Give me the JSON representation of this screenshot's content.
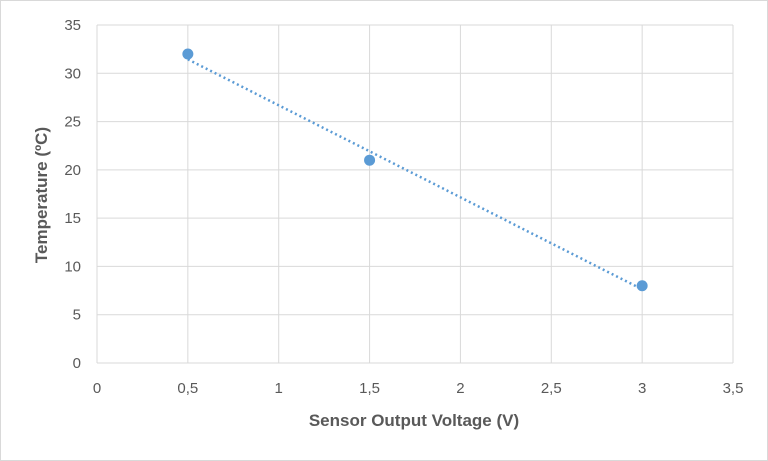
{
  "chart_data": {
    "type": "scatter",
    "title": "",
    "xlabel": "Sensor Output Voltage (V)",
    "ylabel": "Temperature (ºC)",
    "xlim": [
      0,
      3.5
    ],
    "ylim": [
      0,
      35
    ],
    "xticks": [
      0,
      0.5,
      1,
      1.5,
      2,
      2.5,
      3,
      3.5
    ],
    "xtick_labels": [
      "0",
      "0,5",
      "1",
      "1,5",
      "2",
      "2,5",
      "3",
      "3,5"
    ],
    "yticks": [
      0,
      5,
      10,
      15,
      20,
      25,
      30,
      35
    ],
    "ytick_labels": [
      "0",
      "5",
      "10",
      "15",
      "20",
      "25",
      "30",
      "35"
    ],
    "grid": true,
    "legend": "none",
    "series": [
      {
        "name": "Temperature",
        "x": [
          0.5,
          1.5,
          3
        ],
        "y": [
          32,
          21,
          8
        ],
        "marker_color": "#5b9bd5",
        "trendline": {
          "type": "linear",
          "style": "dotted",
          "color": "#5b9bd5"
        }
      }
    ]
  },
  "colors": {
    "grid": "#d9d9d9",
    "text": "#595959",
    "marker": "#5b9bd5"
  }
}
